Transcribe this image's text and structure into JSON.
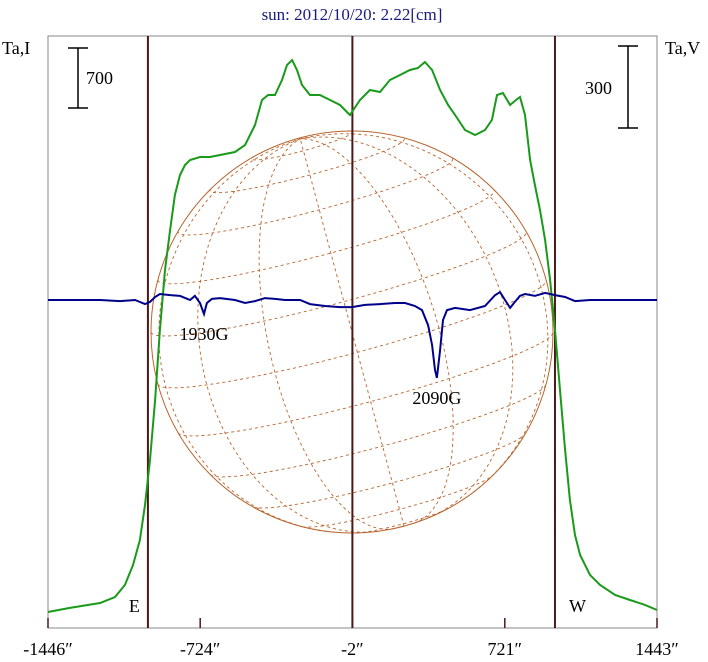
{
  "chart_data": {
    "type": "line",
    "title": "sun: 2012/10/20: 2.22[cm]",
    "y_label": "Ta,I",
    "y2_label": "Ta,V",
    "xlim": [
      -1446,
      1443
    ],
    "xticks": [
      {
        "value": -1446,
        "label": "-1446″"
      },
      {
        "value": -724,
        "label": "-724″"
      },
      {
        "value": -2,
        "label": "-2″"
      },
      {
        "value": 721,
        "label": "721″"
      },
      {
        "value": 1443,
        "label": "1443″"
      }
    ],
    "ylim": [
      -187,
      6720
    ],
    "y2lim": [
      -1200,
      966
    ],
    "i_scale_bar": 700,
    "v_scale_bar": 300,
    "markers": [
      {
        "x": -972,
        "label": "E"
      },
      {
        "x": -2
      },
      {
        "x": 959,
        "label": "W"
      }
    ],
    "annotations": [
      {
        "text": "1930G",
        "x": -706
      },
      {
        "text": "2090G",
        "x": 399
      }
    ],
    "series": [
      {
        "color": "#1a9a1a",
        "x": [
          -1446,
          -1342,
          -1199,
          -1128,
          -1081,
          -1043,
          -1010,
          -986,
          -962,
          -938,
          -915,
          -891,
          -867,
          -844,
          -820,
          -796,
          -772,
          -725,
          -677,
          -630,
          -559,
          -511,
          -464,
          -431,
          -402,
          -369,
          -336,
          -312,
          -288,
          -265,
          -241,
          -203,
          -156,
          -108,
          -61,
          -14,
          34,
          81,
          129,
          176,
          224,
          271,
          309,
          342,
          376,
          414,
          452,
          485,
          532,
          580,
          627,
          660,
          684,
          712,
          746,
          774,
          793,
          817,
          841,
          864,
          888,
          912,
          936,
          959,
          983,
          1007,
          1030,
          1054,
          1078,
          1125,
          1173,
          1244,
          1315,
          1386,
          1443
        ],
        "values": [
          0,
          47,
          105,
          175,
          315,
          548,
          840,
          1248,
          1773,
          2473,
          3290,
          3990,
          4457,
          4865,
          5098,
          5215,
          5273,
          5308,
          5308,
          5332,
          5367,
          5448,
          5682,
          5973,
          6032,
          6032,
          6207,
          6382,
          6440,
          6323,
          6148,
          6032,
          6032,
          5973,
          5915,
          5798,
          5973,
          6090,
          6067,
          6207,
          6265,
          6323,
          6347,
          6417,
          6323,
          6090,
          5915,
          5798,
          5623,
          5565,
          5623,
          5740,
          6032,
          6055,
          5915,
          5973,
          6008,
          5798,
          5273,
          4982,
          4690,
          4340,
          3873,
          3290,
          2590,
          1890,
          1307,
          898,
          665,
          432,
          315,
          198,
          140,
          82,
          23
        ]
      },
      {
        "color": "#00008b",
        "axis": "y2",
        "x": [
          -1446,
          -1199,
          -1104,
          -1033,
          -986,
          -962,
          -938,
          -915,
          -867,
          -820,
          -772,
          -749,
          -725,
          -706,
          -692,
          -668,
          -630,
          -559,
          -511,
          -464,
          -417,
          -369,
          -322,
          -250,
          -203,
          -132,
          -61,
          -4,
          58,
          129,
          200,
          248,
          295,
          328,
          357,
          376,
          390,
          399,
          414,
          428,
          447,
          485,
          556,
          627,
          675,
          698,
          722,
          746,
          769,
          793,
          817,
          864,
          912,
          959,
          1007,
          1054,
          1125,
          1443
        ],
        "values": [
          0,
          0,
          -4,
          0,
          -15,
          -7,
          11,
          22,
          18,
          15,
          0,
          15,
          -11,
          -51,
          -11,
          4,
          7,
          0,
          -11,
          -4,
          7,
          4,
          0,
          0,
          -15,
          -22,
          -26,
          -26,
          -18,
          -15,
          -11,
          -11,
          -22,
          -37,
          -92,
          -165,
          -256,
          -285,
          -183,
          -73,
          -37,
          -29,
          -37,
          -22,
          18,
          29,
          0,
          -29,
          -7,
          15,
          22,
          15,
          26,
          18,
          11,
          -4,
          0,
          0
        ]
      }
    ]
  }
}
